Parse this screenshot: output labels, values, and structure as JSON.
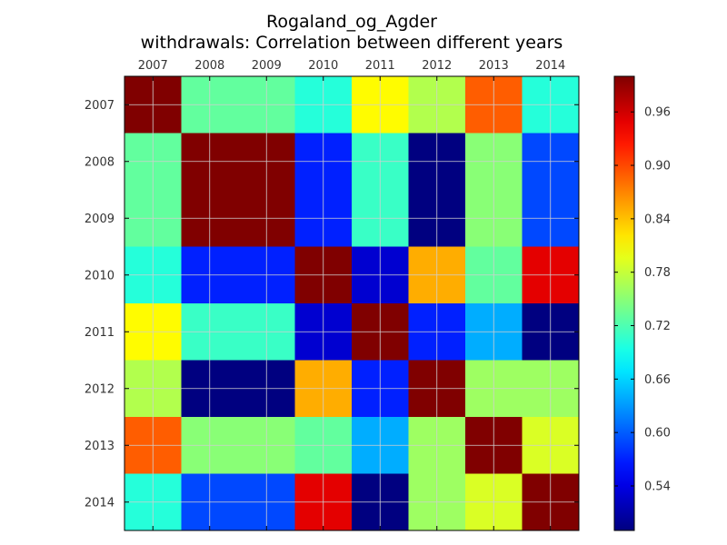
{
  "chart_data": {
    "type": "heatmap",
    "title": "Rogaland_og_Agder",
    "subtitle": "withdrawals: Correlation between different years",
    "xlabel": "",
    "ylabel": "",
    "x_categories": [
      "2007",
      "2008",
      "2009",
      "2010",
      "2011",
      "2012",
      "2013",
      "2014"
    ],
    "y_categories": [
      "2007",
      "2008",
      "2009",
      "2010",
      "2011",
      "2012",
      "2013",
      "2014"
    ],
    "values": [
      [
        1.0,
        0.73,
        0.73,
        0.7,
        0.81,
        0.77,
        0.89,
        0.7
      ],
      [
        0.73,
        1.0,
        1.0,
        0.57,
        0.71,
        0.49,
        0.75,
        0.59
      ],
      [
        0.73,
        1.0,
        1.0,
        0.57,
        0.71,
        0.49,
        0.75,
        0.59
      ],
      [
        0.7,
        0.57,
        0.57,
        1.0,
        0.53,
        0.85,
        0.73,
        0.95
      ],
      [
        0.81,
        0.71,
        0.71,
        0.53,
        1.0,
        0.57,
        0.64,
        0.49
      ],
      [
        0.77,
        0.49,
        0.49,
        0.85,
        0.57,
        1.0,
        0.76,
        0.76
      ],
      [
        0.89,
        0.75,
        0.75,
        0.73,
        0.64,
        0.76,
        1.0,
        0.79
      ],
      [
        0.7,
        0.59,
        0.59,
        0.95,
        0.49,
        0.76,
        0.79,
        1.0
      ]
    ],
    "colormap": "jet",
    "color_range": [
      0.49,
      1.0
    ],
    "colorbar_ticks": [
      "0.54",
      "0.60",
      "0.66",
      "0.72",
      "0.78",
      "0.84",
      "0.90",
      "0.96"
    ],
    "colorbar_tick_values": [
      0.54,
      0.6,
      0.66,
      0.72,
      0.78,
      0.84,
      0.9,
      0.96
    ],
    "x_tick_position": "top",
    "grid": true,
    "colorbar_position": "right"
  }
}
